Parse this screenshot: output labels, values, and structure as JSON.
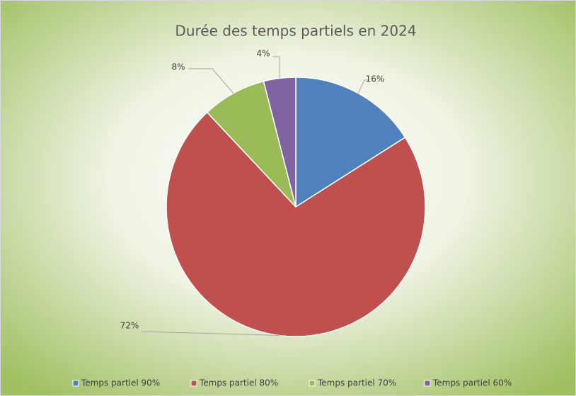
{
  "chart_data": {
    "type": "pie",
    "title": "Durée des temps partiels en 2024",
    "categories": [
      "Temps partiel 90%",
      "Temps partiel 80%",
      "Temps partiel 70%",
      "Temps partiel 60%"
    ],
    "values": [
      16,
      72,
      8,
      4
    ],
    "value_labels": [
      "16%",
      "72%",
      "8%",
      "4%"
    ],
    "colors": [
      "#4f81bd",
      "#c0504d",
      "#9bbb59",
      "#8064a2"
    ],
    "legend": "bottom"
  }
}
